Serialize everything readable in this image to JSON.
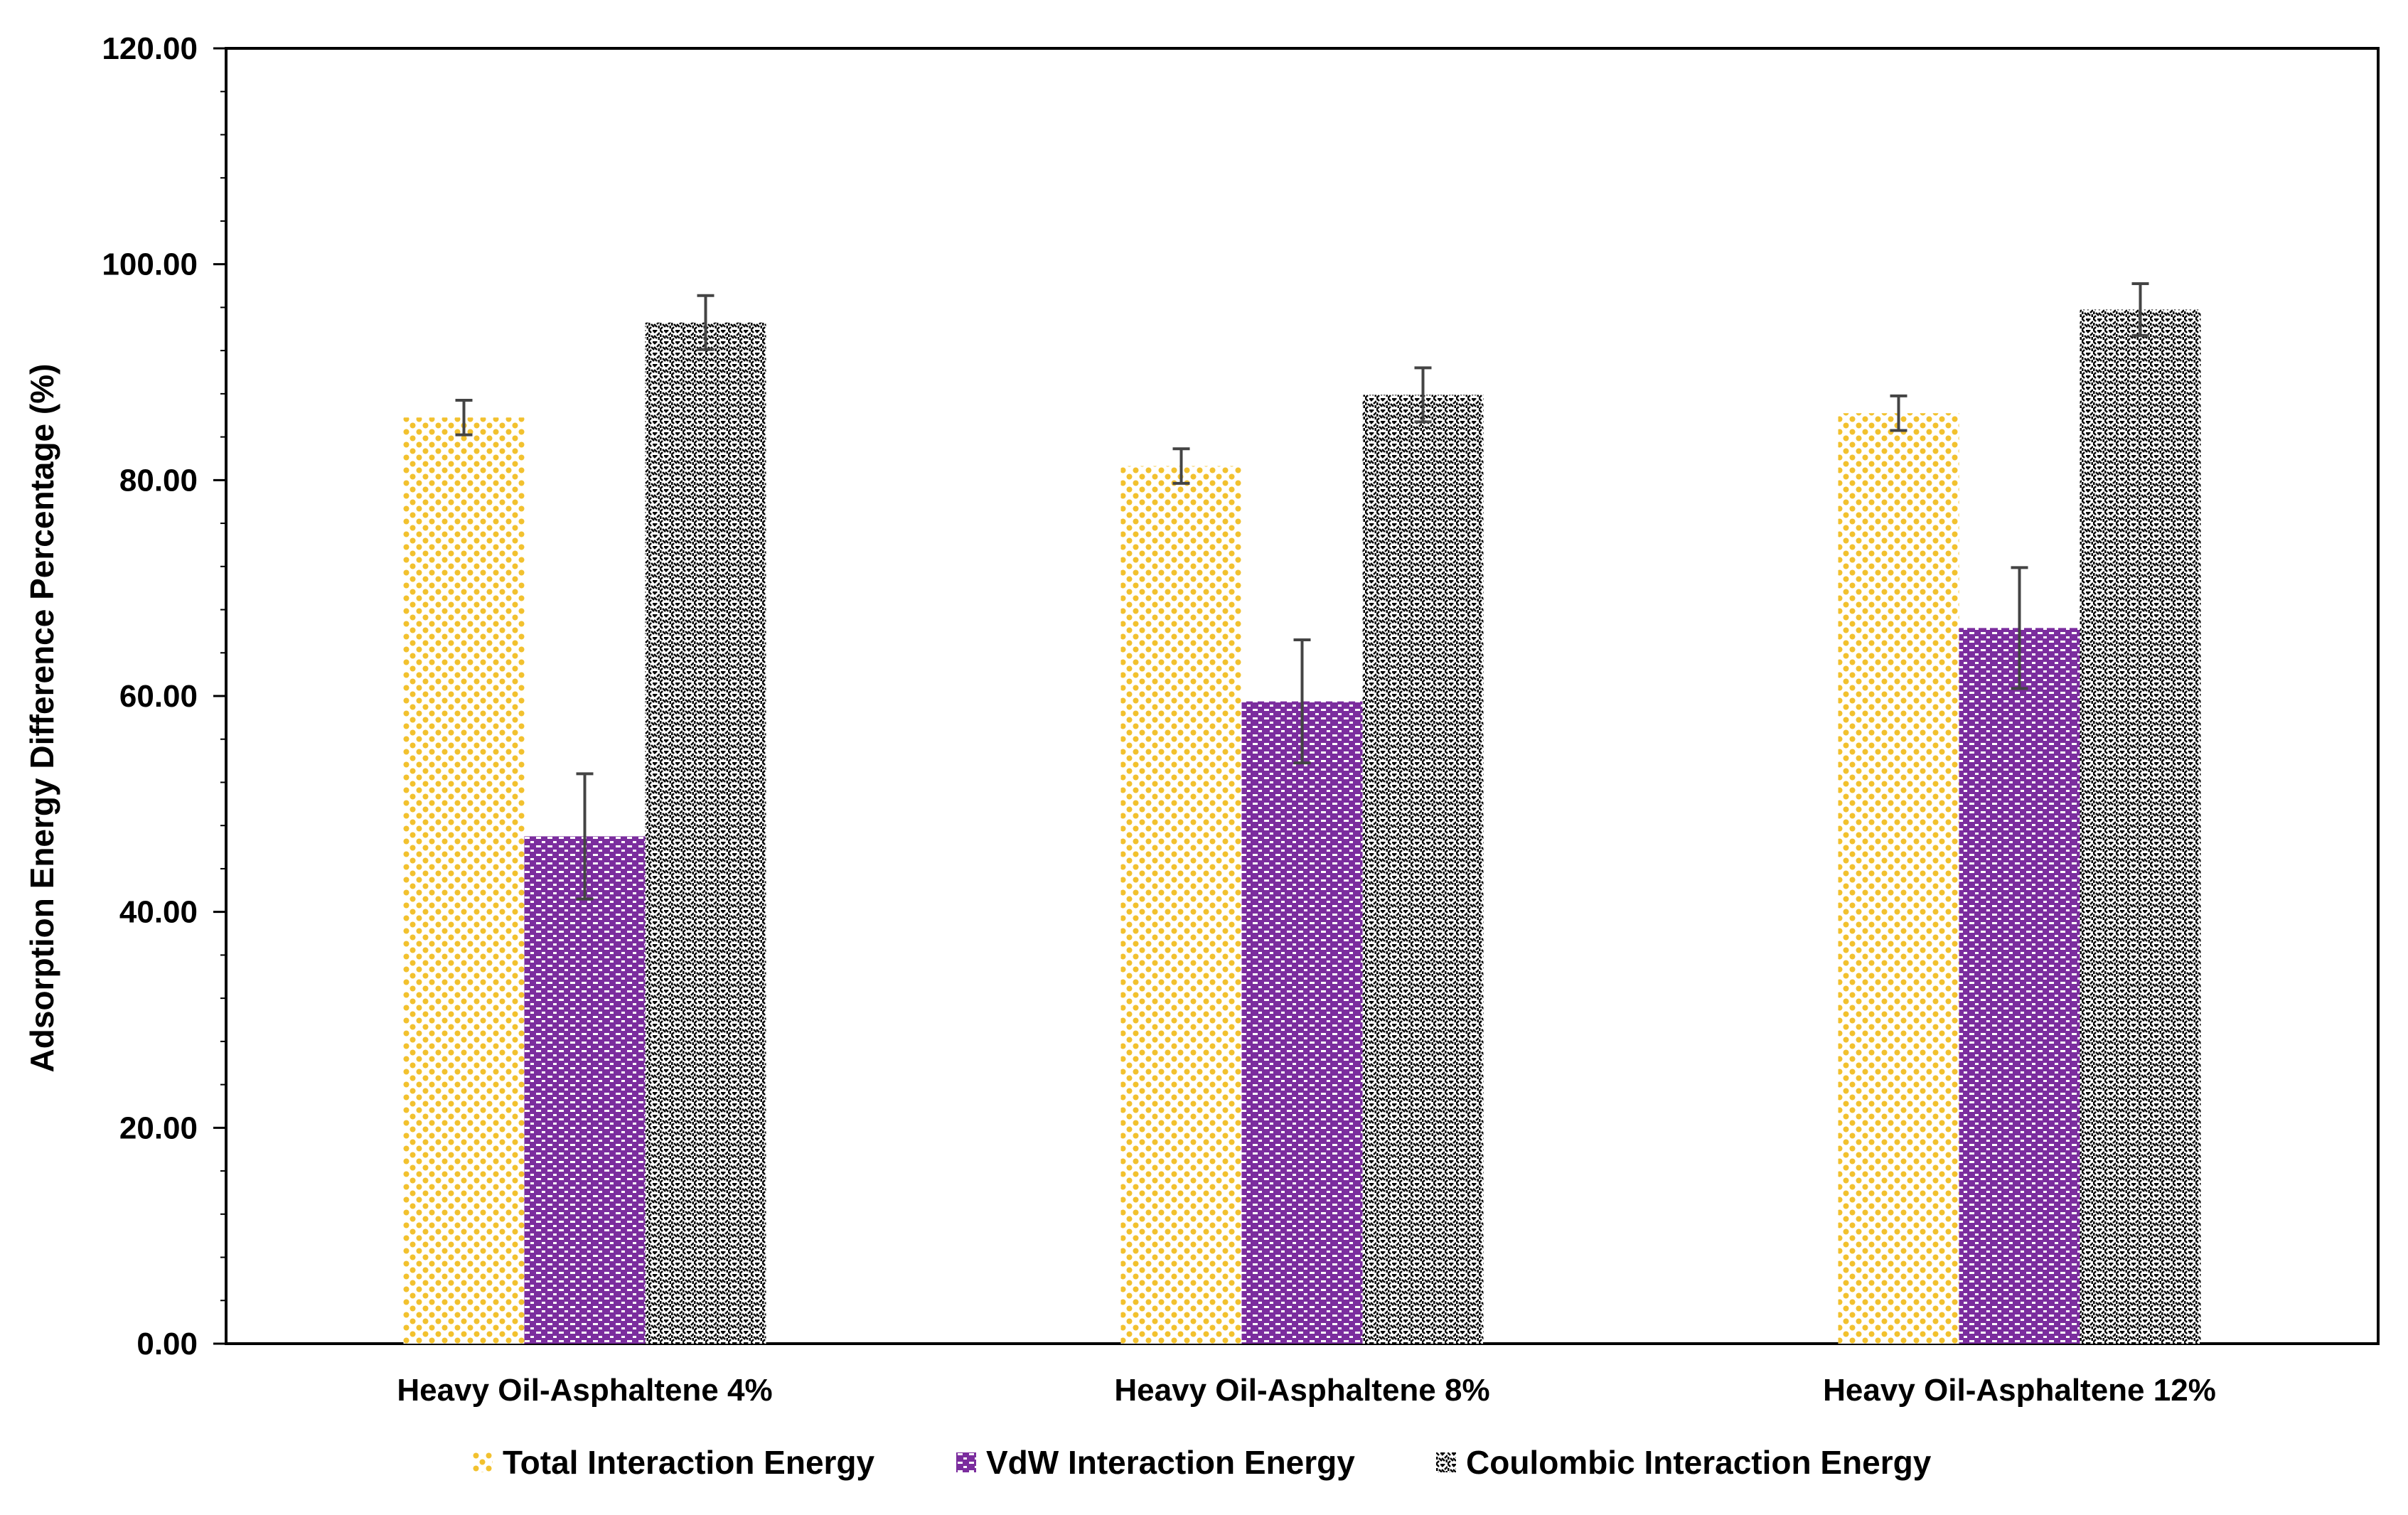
{
  "chart_data": {
    "type": "bar",
    "categories": [
      "Heavy Oil-Asphaltene 4%",
      "Heavy Oil-Asphaltene 8%",
      "Heavy Oil-Asphaltene 12%"
    ],
    "series": [
      {
        "name": "Total Interaction Energy",
        "values": [
          85.8,
          81.3,
          86.2
        ],
        "errors": [
          1.6,
          1.6,
          1.6
        ],
        "color": "#f2c12e",
        "pattern": "dots"
      },
      {
        "name": "VdW Interaction Energy",
        "values": [
          47.0,
          59.5,
          66.3
        ],
        "errors": [
          5.8,
          5.7,
          5.6
        ],
        "color": "#7b2d9e",
        "pattern": "dashes"
      },
      {
        "name": "Coulombic Interaction Energy",
        "values": [
          94.6,
          87.9,
          95.8
        ],
        "errors": [
          2.5,
          2.5,
          2.4
        ],
        "color": "#000000",
        "pattern": "weave"
      }
    ],
    "title": "",
    "xlabel": "",
    "ylabel": "Adsorption Energy Difference Percentage (%)",
    "ylim": [
      0,
      120
    ],
    "yticks": [
      "0.00",
      "20.00",
      "40.00",
      "60.00",
      "80.00",
      "100.00",
      "120.00"
    ],
    "ytick_values": [
      0,
      20,
      40,
      60,
      80,
      100,
      120
    ],
    "grid": false,
    "legend_position": "bottom"
  }
}
